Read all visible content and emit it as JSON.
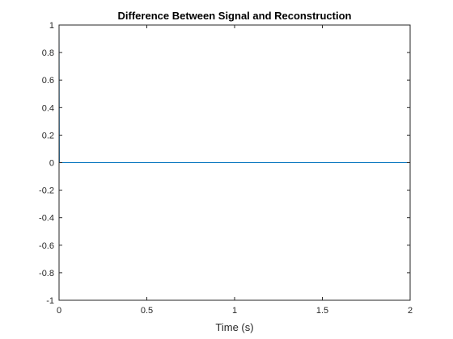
{
  "chart_data": {
    "type": "line",
    "title": "Difference Between Signal and Reconstruction",
    "xlabel": "Time (s)",
    "ylabel": "",
    "xlim": [
      0,
      2
    ],
    "ylim": [
      -1,
      1
    ],
    "x_ticks": [
      0,
      0.5,
      1,
      1.5,
      2
    ],
    "x_tick_labels": [
      "0",
      "0.5",
      "1",
      "1.5",
      "2"
    ],
    "y_ticks": [
      1,
      0.8,
      0.6,
      0.4,
      0.2,
      0,
      -0.2,
      -0.4,
      -0.6,
      -0.8,
      -1
    ],
    "y_tick_labels": [
      "1",
      "0.8",
      "0.6",
      "0.4",
      "0.2",
      "0",
      "-0.2",
      "-0.4",
      "-0.6",
      "-0.8",
      "-1"
    ],
    "grid": false,
    "series": [
      {
        "color": "#0072BD",
        "x": [
          0,
          0,
          0.002,
          1.998,
          2,
          2
        ],
        "y": [
          0,
          1,
          0,
          0,
          0,
          -1
        ]
      }
    ]
  }
}
